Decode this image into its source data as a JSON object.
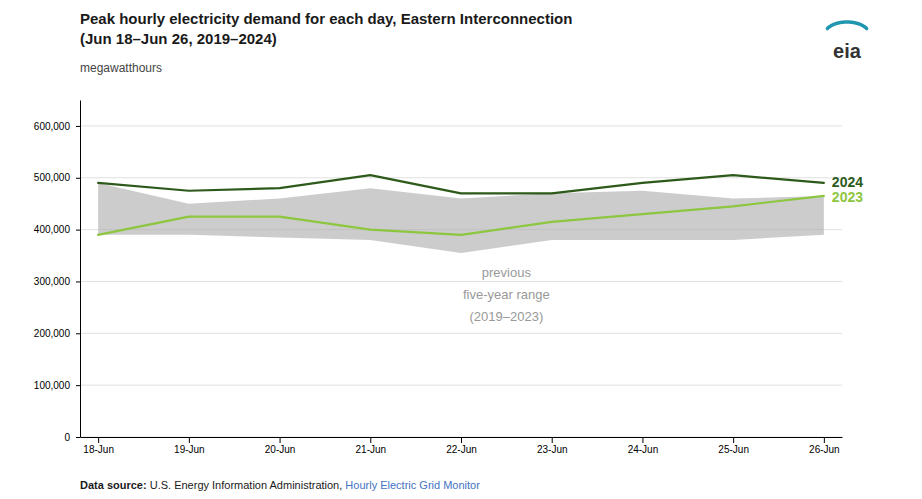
{
  "chart_data": {
    "type": "line",
    "title": "Peak hourly electricity demand for each day, Eastern Interconnection",
    "subtitle": "(Jun 18–Jun 26, 2019–2024)",
    "y_label": "megawatthours",
    "categories": [
      "18-Jun",
      "19-Jun",
      "20-Jun",
      "21-Jun",
      "22-Jun",
      "23-Jun",
      "24-Jun",
      "25-Jun",
      "26-Jun"
    ],
    "series": [
      {
        "name": "2023",
        "color": "#8dc63f",
        "values": [
          390000,
          425000,
          425000,
          400000,
          390000,
          415000,
          430000,
          445000,
          465000
        ]
      },
      {
        "name": "2024",
        "color": "#2d5a1b",
        "values": [
          490000,
          475000,
          480000,
          505000,
          470000,
          470000,
          490000,
          505000,
          490000
        ]
      }
    ],
    "band": {
      "color": "#b0b0b0",
      "lower": [
        390000,
        390000,
        385000,
        380000,
        355000,
        380000,
        380000,
        380000,
        390000
      ],
      "upper": [
        490000,
        450000,
        460000,
        480000,
        460000,
        470000,
        475000,
        460000,
        465000
      ]
    },
    "ylim": [
      0,
      650000
    ],
    "yticks": [
      0,
      {
        "value": 100000,
        "label": "100,000"
      },
      {
        "value": 200000,
        "label": "200,000"
      },
      {
        "value": 300000,
        "label": "300,000"
      },
      {
        "value": 400000,
        "label": "400,000"
      },
      {
        "value": 500000,
        "label": "500,000"
      },
      {
        "value": 600000,
        "label": "600,000"
      }
    ],
    "grid": true,
    "annotations": [
      "previous\nfive-year range\n(2019–2023)"
    ],
    "logo": "eia",
    "source": [
      "Data source: ",
      "U.S. Energy Information Administration, ",
      "Hourly Electric Grid Monitor"
    ]
  }
}
